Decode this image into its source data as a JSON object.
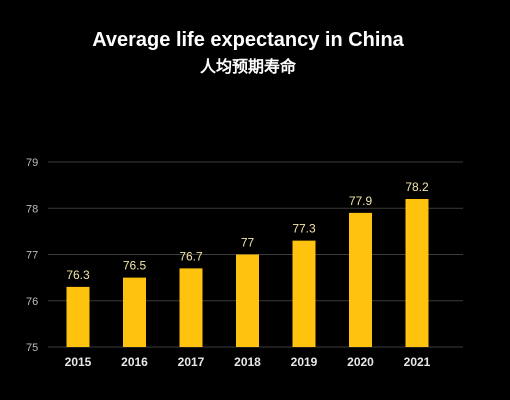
{
  "chart_data": {
    "type": "bar",
    "title": "Average life expectancy in China",
    "subtitle": "人均预期寿命",
    "categories": [
      "2015",
      "2016",
      "2017",
      "2018",
      "2019",
      "2020",
      "2021"
    ],
    "values": [
      76.3,
      76.5,
      76.7,
      77,
      77.3,
      77.9,
      78.2
    ],
    "value_labels": [
      "76.3",
      "76.5",
      "76.7",
      "77",
      "77.3",
      "77.9",
      "78.2"
    ],
    "ylim": [
      75,
      79
    ],
    "yticks": [
      "75",
      "76",
      "77",
      "78",
      "79"
    ],
    "xlabel": "",
    "ylabel": "",
    "grid": true,
    "legend": "none",
    "colors": {
      "background": "#000000",
      "bar": "#FFC20E",
      "grid": "#3b3b3b",
      "text": "#ffffff"
    }
  }
}
